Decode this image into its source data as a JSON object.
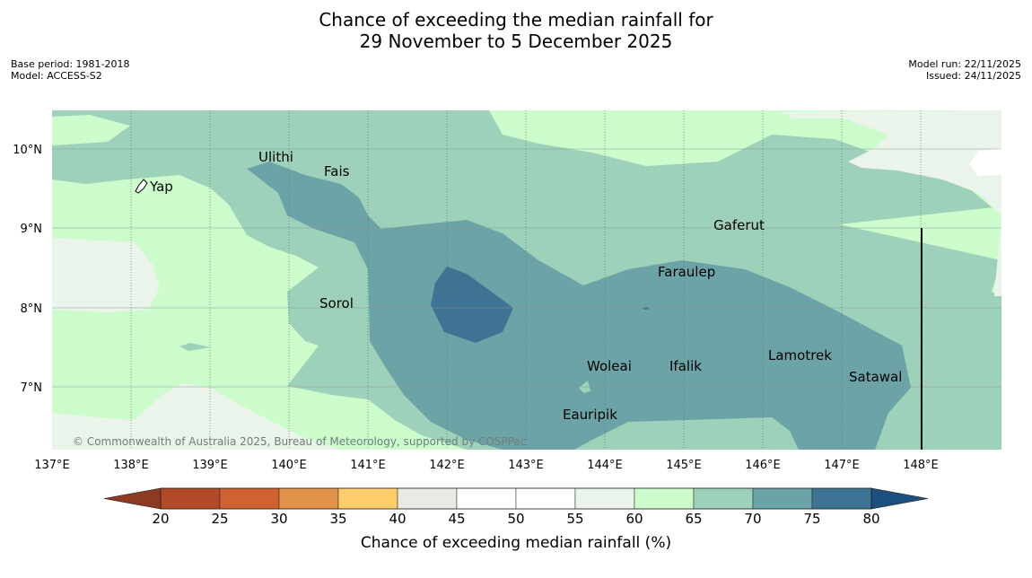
{
  "title_line1": "Chance of exceeding the median rainfall for",
  "title_line2": "29 November to 5 December 2025",
  "meta_left": {
    "base_period": "Base period: 1981-2018",
    "model": "Model: ACCESS-S2"
  },
  "meta_right": {
    "model_run": "Model run: 22/11/2025",
    "issued": "Issued: 24/11/2025"
  },
  "copyright": "© Commonwealth of Australia 2025, Bureau of Meteorology, supported by COSPPac",
  "map": {
    "lon_range": [
      137,
      149
    ],
    "lat_range": [
      6.2,
      10.5
    ],
    "lon_ticks": [
      "137°E",
      "138°E",
      "139°E",
      "140°E",
      "141°E",
      "142°E",
      "143°E",
      "144°E",
      "145°E",
      "146°E",
      "147°E",
      "148°E"
    ],
    "lat_ticks": [
      "10°N",
      "9°N",
      "8°N",
      "7°N"
    ],
    "places": [
      {
        "name": "Yap",
        "lon": 138.1,
        "lat": 9.5
      },
      {
        "name": "Ulithi",
        "lon": 139.75,
        "lat": 9.95
      },
      {
        "name": "Fais",
        "lon": 140.5,
        "lat": 9.75
      },
      {
        "name": "Sorol",
        "lon": 140.4,
        "lat": 8.1
      },
      {
        "name": "Gaferut",
        "lon": 145.35,
        "lat": 9.2
      },
      {
        "name": "Faraulep",
        "lon": 144.7,
        "lat": 8.55
      },
      {
        "name": "Woleai",
        "lon": 143.9,
        "lat": 7.35
      },
      {
        "name": "Ifalik",
        "lon": 144.75,
        "lat": 7.35
      },
      {
        "name": "Lamotrek",
        "lon": 146.1,
        "lat": 7.45
      },
      {
        "name": "Satawal",
        "lon": 147.05,
        "lat": 7.3
      },
      {
        "name": "Eauripik",
        "lon": 143.5,
        "lat": 6.7
      }
    ]
  },
  "colorbar": {
    "title": "Chance of exceeding median rainfall (%)",
    "ticks": [
      "20",
      "25",
      "30",
      "35",
      "40",
      "45",
      "50",
      "55",
      "60",
      "65",
      "70",
      "75",
      "80"
    ],
    "under_color": "#8c3a22",
    "over_color": "#1b4f7e",
    "colors": [
      "#b04a28",
      "#cf6230",
      "#e2924a",
      "#fdcd6a",
      "#ebe9e4",
      "#ffffff",
      "#ffffff",
      "#eaf4ea",
      "#ccfccb",
      "#9ed1ba",
      "#6ca3a6",
      "#3e7393"
    ]
  }
}
